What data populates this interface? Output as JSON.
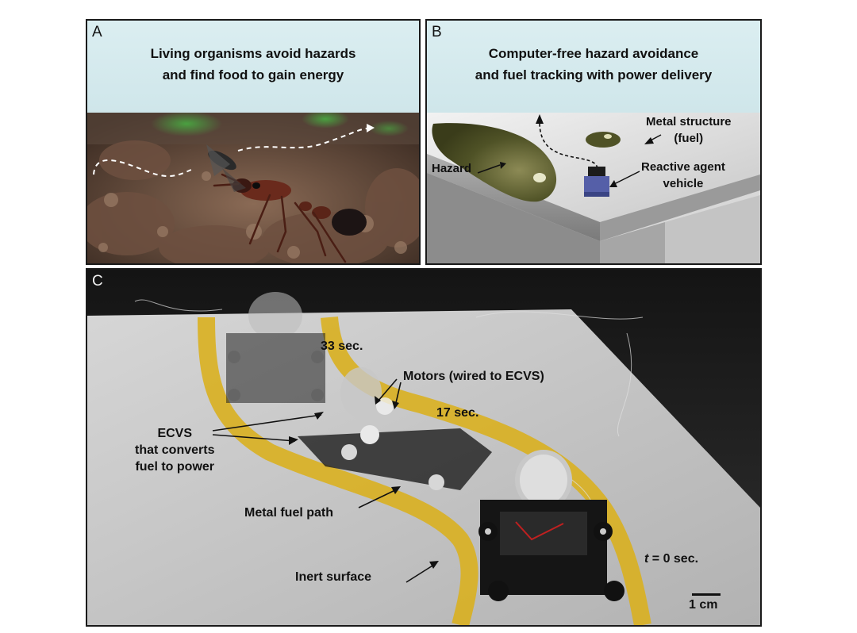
{
  "panel_a": {
    "letter": "A",
    "title_line1": "Living organisms avoid hazards",
    "title_line2": "and find food to gain energy"
  },
  "panel_b": {
    "letter": "B",
    "title_line1": "Computer-free hazard avoidance",
    "title_line2": "and fuel tracking with power delivery",
    "labels": {
      "metal_structure_line1": "Metal structure",
      "metal_structure_line2": "(fuel)",
      "hazard": "Hazard",
      "reactive_agent_line1": "Reactive agent",
      "reactive_agent_line2": "vehicle"
    }
  },
  "panel_c": {
    "letter": "C",
    "labels": {
      "time_33": "33 sec.",
      "motors": "Motors (wired to ECVS)",
      "time_17": "17 sec.",
      "ecvs_line1": "ECVS",
      "ecvs_line2": "that converts",
      "ecvs_line3": "fuel to power",
      "metal_fuel_path": "Metal fuel path",
      "inert_surface": "Inert surface",
      "t_italic": "t",
      "time_0_rest": " = 0 sec.",
      "scale_bar": "1 cm"
    }
  },
  "colors": {
    "title_band": "#d6ecef",
    "fuel_path_yellow": "#d9b020",
    "hazard_olive": "#4f5226",
    "metal_grey": "#c9c9c9"
  }
}
